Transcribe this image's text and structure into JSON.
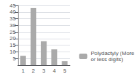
{
  "chart_data": {
    "type": "bar",
    "categories": [
      "1",
      "2",
      "3",
      "4",
      "5"
    ],
    "series": [
      {
        "name": "Polydactyly (More\nor less digits)",
        "color": "#aaaaaa",
        "values": [
          7,
          43,
          18,
          12,
          3
        ]
      }
    ],
    "ylim": [
      0,
      45
    ],
    "yticks": [
      5,
      10,
      15,
      20,
      25,
      30,
      35,
      40,
      45
    ],
    "grid": true,
    "legend": "lower right"
  }
}
